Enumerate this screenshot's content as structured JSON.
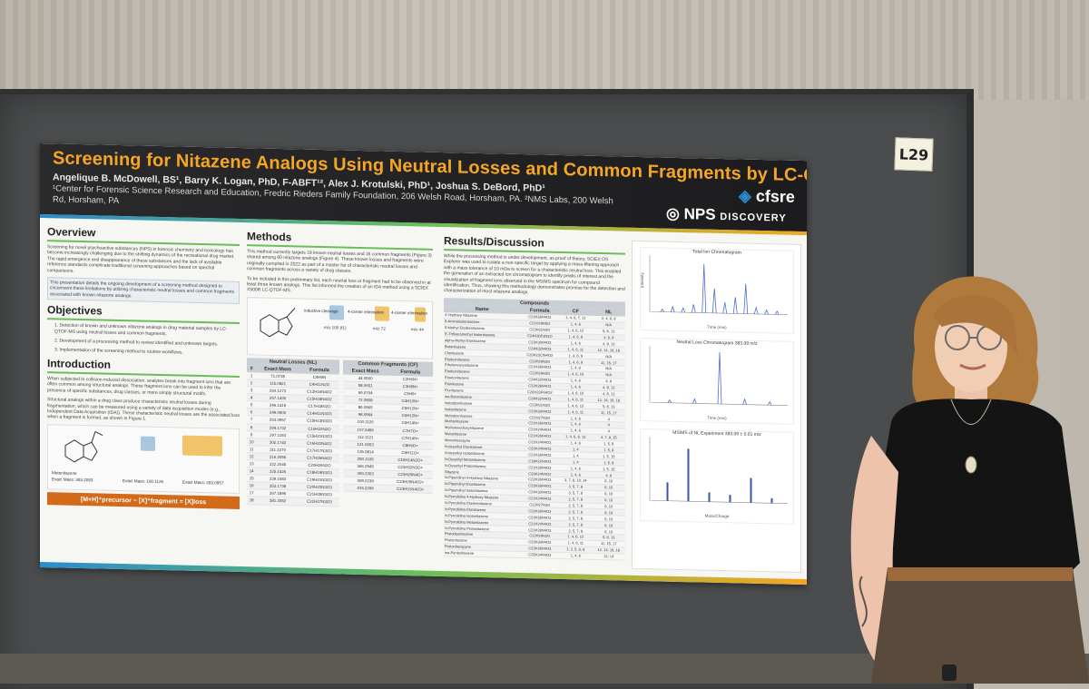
{
  "booth_tag": "L29",
  "poster": {
    "title": "Screening for Nitazene Analogs Using Neutral Losses and Common Fragments by LC-QTOF-MS",
    "authors": "Angelique B. McDowell, BS¹, Barry K. Logan, PhD, F-ABFT¹², Alex J. Krotulski, PhD¹, Joshua S. DeBord, PhD¹",
    "affiliation_line1": "¹Center for Forensic Science Research and Education, Fredric Rieders Family Foundation, 206 Welsh Road, Horsham, PA. ²NMS Labs, 200 Welsh",
    "affiliation_line2": "Rd, Horsham, PA",
    "logos": {
      "cfsre": "cfsre",
      "nps": "NPS",
      "nps_sub": "DISCOVERY"
    },
    "overview": {
      "heading": "Overview",
      "p1": "Screening for novel psychoactive substances (NPS) in forensic chemistry and toxicology has become increasingly challenging due to the shifting dynamics of the recreational drug market. The rapid emergence and disappearance of these substances and the lack of available reference standards complicate traditional screening approaches based on spectral comparisons.",
      "p2": "This presentation details the ongoing development of a screening method designed to circumvent these limitations by utilizing characteristic neutral losses and common fragments associated with known nitazene analogs."
    },
    "objectives": {
      "heading": "Objectives",
      "items": [
        "1. Detection of known and unknown nitazene analogs in drug material samples by LC-QTOF-MS using neutral losses and common fragments.",
        "2. Development of a processing method to review identified and unknown targets.",
        "3. Implementation of the screening method to routine workflows."
      ]
    },
    "introduction": {
      "heading": "Introduction",
      "p1": "When subjected to collision-induced dissociation, analytes break into fragment ions that are often common among structural analogs. These fragment ions can be used to infer the presence of specific substances, drug classes, or more simply structural motifs.",
      "p2": "Structural analogs within a drug class produce characteristic neutral losses during fragmentation, which can be measured using a variety of data acquisition modes (e.g., Independent Data Acquisition (IDA)). These characteristic neutral losses are the associated loss when a fragment is formed, as shown in Figure 1.",
      "chem_label": "Metonitazene",
      "exact_mass_1": "Exact Mass: 383.2083",
      "exact_mass_2": "Exact Mass: 100.1126",
      "exact_mass_3": "Exact Mass: 283.0957",
      "formula": "[M+H]⁺precursor − [X]⁺fragment = [X]loss"
    },
    "methods": {
      "heading": "Methods",
      "p1": "This method currently targets 18 known neutral losses and 16 common fragments (Figure 3) shared among 60 nitazene analogs (Figure 4). These known losses and fragments were originally compiled in 2022 as part of a master list of characteristic neutral losses and common fragments across a variety of drug classes.",
      "p2": "To be included in this preliminary list, each neutral loss or fragment had to be observed in at least three known analogs. This list informed the creation of an IDA method using a SCIEX X500R LC-QTOF-MS.",
      "step_labels": [
        "inductive cleavage",
        "4-center elimination",
        "4-center elimination"
      ],
      "masses": [
        "m/z 100 (f1)",
        "m/z 72",
        "m/z 44"
      ],
      "nl_heading": "Neutral Losses (NL)",
      "cf_heading": "Common Fragments (CF)",
      "nl_cols": [
        "#",
        "Exact Mass",
        "Formula"
      ],
      "cf_cols": [
        "Exact Mass",
        "Formula"
      ],
      "nl_rows": [
        [
          "1",
          "71.0735",
          "C4H9N"
        ],
        [
          "2",
          "115.0821",
          "C4H11N2O"
        ],
        [
          "3",
          "260.1273",
          "C13H16N4O2"
        ],
        [
          "4",
          "267.1430",
          "C15H18N4O2"
        ],
        [
          "5",
          "246.1419",
          "C17H18N2O"
        ],
        [
          "6",
          "249.0900",
          "C14H11N3O3"
        ],
        [
          "7",
          "263.0957",
          "C15H13N3O3"
        ],
        [
          "8",
          "294.1732",
          "C16H22N2O"
        ],
        [
          "9",
          "297.1193",
          "C15H21N3O3"
        ],
        [
          "10",
          "302.1743",
          "C16H22N4O2"
        ],
        [
          "11",
          "311.1270",
          "C17H17N3O3"
        ],
        [
          "12",
          "316.2056",
          "C17H26N4O2"
        ],
        [
          "13",
          "322.2045",
          "C20H26N2O"
        ],
        [
          "14",
          "325.1426",
          "C18H19N3O3"
        ],
        [
          "15",
          "339.1583",
          "C19H21N3O3"
        ],
        [
          "16",
          "353.1739",
          "C20H23N3O3"
        ],
        [
          "17",
          "367.1896",
          "C21H25N3O3"
        ],
        [
          "18",
          "381.2052",
          "C22H27N3O3"
        ]
      ],
      "cf_rows": [
        [
          "44.0500",
          "C2H6N+"
        ],
        [
          "58.0651",
          "C3H8N+"
        ],
        [
          "69.0704",
          "C5H9+"
        ],
        [
          "72.0808",
          "C4H10N+"
        ],
        [
          "86.0965",
          "C5H12N+"
        ],
        [
          "98.0964",
          "C6H12N+"
        ],
        [
          "100.1126",
          "C6H14N+"
        ],
        [
          "107.0496",
          "C7H7O+"
        ],
        [
          "112.1121",
          "C7H14N+"
        ],
        [
          "121.0653",
          "C8H9O+"
        ],
        [
          "135.0814",
          "C9H11O+"
        ],
        [
          "250.1106",
          "C15H14N2O+"
        ],
        [
          "366.2545",
          "C23H32N3O+"
        ],
        [
          "393.2303",
          "C23H29N4O+"
        ],
        [
          "409.2239",
          "C23H29N4O2+"
        ],
        [
          "415.2296",
          "C23H31N4O3+"
        ]
      ]
    },
    "results": {
      "heading": "Results/Discussion",
      "p1": "While the processing method is under development, as proof of theory, SCIEX OS Explorer was used to isolate a non-specific target by applying a mass-filtering approach with a mass tolerance of 10 mDa to screen for a characteristic neutral loss. This enabled the generation of an extracted ion chromatogram to identify peaks of interest and the visualization of fragment ions observed in the MS/MS spectrum for compound identification. Thus, showing this methodology demonstrates promise for the detection and characterization of most nitazene analogs.",
      "compounds_heading": "Compounds",
      "cols": [
        "Name",
        "Formula",
        "CF",
        "NL"
      ],
      "rows": [
        [
          "4'-Hydroxy Nitazene",
          "C21H26N4O3",
          "1, 4, 6, 7, 11",
          "2, 4, 6, 9"
        ],
        [
          "5-Aminoisotonitazene",
          "C21H29N5O",
          "1, 4, 6",
          "N/A"
        ],
        [
          "5-Methyl Etodesnitazene",
          "C23H31N3O",
          "1, 4, 6, 12",
          "5, 8, 13"
        ],
        [
          "5'-Trifluoromethyl Isotonitazene",
          "C24H30F3N3O",
          "1, 4, 6, 9",
          "4, 8, 9"
        ],
        [
          "alpha-Methyl Etonitazene",
          "C23H30N4O3",
          "1, 4, 6",
          "4, 9, 13"
        ],
        [
          "Butonitazene",
          "C24H32N4O3",
          "1, 4, 6, 11",
          "12, 14, 16, 18"
        ],
        [
          "Clonitazene",
          "C20H23ClN4O2",
          "1, 4, 6, 9",
          "N/A"
        ],
        [
          "Etodesnitazene",
          "C22H29N3O",
          "1, 4, 6, 9",
          "11, 15, 17"
        ],
        [
          "Ethyleneoxynitazene",
          "C21H26N4O3",
          "1, 4, 6",
          "N/A"
        ],
        [
          "Etodesnitazene",
          "C22H29N3O",
          "1, 4, 6, 10",
          "N/A"
        ],
        [
          "Etoetonitazene",
          "C24H32N4O3",
          "1, 4, 6",
          "4, 9"
        ],
        [
          "Etonitazene",
          "C22H28N4O3",
          "1, 4, 6",
          "4, 9, 13"
        ],
        [
          "Flunitazene",
          "C20H23FN4O2",
          "1, 4, 6, 10",
          "4, 8, 13"
        ],
        [
          "iso-Butonitazene",
          "C24H32N4O3",
          "1, 4, 6, 11",
          "12, 14, 16, 18"
        ],
        [
          "Isotodesnitazene",
          "C23H31N3O",
          "1, 4, 6, 12",
          "5, 8, 13"
        ],
        [
          "Isotonitazene",
          "C23H30N4O3",
          "1, 4, 6, 11",
          "11, 15, 17"
        ],
        [
          "Metodesnitazene",
          "C21H27N3O",
          "1, 4, 6",
          "4"
        ],
        [
          "Methonitazene",
          "C21H26N4O3",
          "1, 4, 6",
          "4"
        ],
        [
          "Methylenedioxynitazene",
          "C21H24N4O4",
          "1, 4, 6",
          "4"
        ],
        [
          "Metonitazene",
          "C21H26N4O3",
          "1, 4, 6, 9, 13",
          "4, 7, 9, 15"
        ],
        [
          "Metonitazepyne",
          "C21H24N4O3",
          "1, 4, 6",
          "1, 5, 8"
        ],
        [
          "N-desethyl Etonitazene",
          "C20H24N4O3",
          "1, 4",
          "1, 5, 8"
        ],
        [
          "N-desethyl Isotonitazene",
          "C21H26N4O3",
          "1, 4",
          "1, 5, 15"
        ],
        [
          "N-Desethyl Metonitazene",
          "C19H22N4O3",
          "1, 4",
          "1, 5, 8"
        ],
        [
          "N-Desethyl Protonitazene",
          "C21H26N4O3",
          "1, 4, 6",
          "1, 5, 15"
        ],
        [
          "Nitazene",
          "C20H24N4O2",
          "1, 4, 6",
          "4, 9"
        ],
        [
          "N-Piperidinyl 4-Hydroxy Nitazene",
          "C22H26N4O3",
          "3, 7, 8, 10, 14",
          "6, 10"
        ],
        [
          "N-Piperidinyl Etonitazene",
          "C23H28N4O3",
          "3, 5, 7, 8",
          "6, 10"
        ],
        [
          "N-Piperidinyl Isotonitazene",
          "C24H30N4O3",
          "3, 5, 7, 8",
          "6, 10"
        ],
        [
          "N-Pyrrolidino 4-Hydroxy Nitazene",
          "C21H24N4O3",
          "2, 5, 7, 8",
          "6, 10"
        ],
        [
          "N-Pyrrolidino Etodesnitazene",
          "C22H27N3O",
          "2, 5, 7, 8",
          "6, 10"
        ],
        [
          "N-Pyrrolidino Etonitazene",
          "C22H26N4O3",
          "2, 5, 7, 8",
          "6, 10"
        ],
        [
          "N-Pyrrolidino Isotonitazene",
          "C23H28N4O3",
          "2, 5, 7, 8",
          "6, 10"
        ],
        [
          "N-Pyrrolidino Metonitazene",
          "C21H24N4O3",
          "2, 5, 7, 8",
          "6, 10"
        ],
        [
          "N-Pyrrolidino Protonitazene",
          "C23H28N4O3",
          "2, 5, 7, 8",
          "6, 10"
        ],
        [
          "Protodesnitazene",
          "C22H29N3O",
          "1, 4, 6, 12",
          "5, 8, 13"
        ],
        [
          "Protonitazene",
          "C23H30N4O3",
          "1, 4, 6, 11",
          "11, 15, 17"
        ],
        [
          "Protonitazepyne",
          "C23H28N4O3",
          "1, 2, 5, 6, 8",
          "12, 14, 16, 18"
        ],
        [
          "iso-Pentonitazene",
          "C25H34N4O3",
          "1, 4, 6",
          "12, 14"
        ]
      ]
    },
    "graphs": {
      "g1_title": "Total Ion Chromatogram",
      "g2_title": "Neutral Loss Chromatogram 383.09 m/z",
      "g3_title": "MS/MS of NL Experiment 383.09 ± 0.01 m/z",
      "xlabel_time": "Time (min)",
      "xlabel_mass": "Mass/Charge",
      "ylabel": "Intensity",
      "tic_peaks": [
        0.05,
        0.1,
        0.08,
        0.15,
        0.9,
        0.45,
        0.2,
        0.3,
        0.55,
        0.12,
        0.08,
        0.06
      ],
      "nl_peaks": [
        0.05,
        0.08,
        0.95,
        0.1,
        0.06
      ],
      "ms_bars": [
        0.3,
        0.85,
        0.15,
        0.12,
        0.4,
        0.08
      ]
    }
  },
  "colors": {
    "accent_orange": "#f5a623",
    "header_dark": "#1c1c1e",
    "green": "#6bbf59",
    "blue": "#2a8ccf"
  }
}
